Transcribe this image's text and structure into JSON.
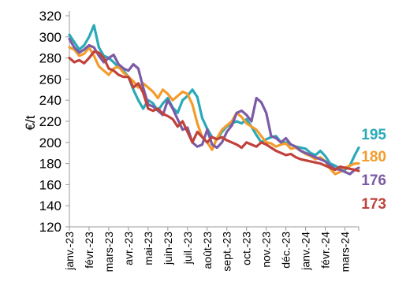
{
  "chart_data": {
    "type": "line",
    "title": "",
    "xlabel": "",
    "ylabel": "€/t",
    "ylim": [
      120,
      320
    ],
    "yticks": [
      120,
      140,
      160,
      180,
      200,
      220,
      240,
      260,
      280,
      300,
      320
    ],
    "grid": false,
    "legend": "none",
    "categories": [
      "janv.-23",
      "févr.-23",
      "mars-23",
      "avr.-23",
      "mai-23",
      "juin-23",
      "juil.-23",
      "août-23",
      "sept.-23",
      "oct.-23",
      "nov.-23",
      "déc.-23",
      "janv.-24",
      "févr.-24",
      "mars-24"
    ],
    "x_start_month": 0,
    "x_end_month": 14.7,
    "series": [
      {
        "name": "",
        "color": "#2AA9B8",
        "end_label": "195",
        "x": [
          0,
          0.25,
          0.5,
          0.75,
          1,
          1.25,
          1.5,
          1.75,
          2,
          2.25,
          2.5,
          2.75,
          3,
          3.25,
          3.5,
          3.75,
          4,
          4.25,
          4.5,
          4.75,
          5,
          5.25,
          5.5,
          5.75,
          6,
          6.25,
          6.5,
          6.75,
          7,
          7.25,
          7.5,
          7.75,
          8,
          8.25,
          8.5,
          8.75,
          9,
          9.25,
          9.5,
          9.75,
          10,
          10.25,
          10.5,
          10.75,
          11,
          11.25,
          11.5,
          11.75,
          12,
          12.25,
          12.5,
          12.75,
          13,
          13.25,
          13.5,
          13.75,
          14,
          14.25,
          14.5,
          14.7
        ],
        "values": [
          302,
          295,
          288,
          292,
          300,
          311,
          290,
          282,
          280,
          276,
          271,
          268,
          262,
          250,
          240,
          232,
          240,
          237,
          230,
          237,
          242,
          233,
          228,
          240,
          244,
          250,
          243,
          223,
          213,
          205,
          203,
          210,
          215,
          218,
          220,
          218,
          222,
          215,
          207,
          200,
          203,
          205,
          206,
          200,
          200,
          198,
          196,
          195,
          194,
          190,
          188,
          192,
          187,
          180,
          178,
          175,
          174,
          178,
          188,
          195
        ]
      },
      {
        "name": "",
        "color": "#F39C2C",
        "end_label": "180",
        "x": [
          0,
          0.25,
          0.5,
          0.75,
          1,
          1.25,
          1.5,
          1.75,
          2,
          2.25,
          2.5,
          2.75,
          3,
          3.25,
          3.5,
          3.75,
          4,
          4.25,
          4.5,
          4.75,
          5,
          5.25,
          5.5,
          5.75,
          6,
          6.25,
          6.5,
          6.75,
          7,
          7.25,
          7.5,
          7.75,
          8,
          8.25,
          8.5,
          8.75,
          9,
          9.25,
          9.5,
          9.75,
          10,
          10.25,
          10.5,
          10.75,
          11,
          11.25,
          11.5,
          11.75,
          12,
          12.25,
          12.5,
          12.75,
          13,
          13.25,
          13.5,
          13.75,
          14,
          14.25,
          14.5,
          14.7
        ],
        "values": [
          290,
          288,
          282,
          284,
          290,
          282,
          272,
          268,
          264,
          270,
          272,
          266,
          262,
          258,
          252,
          256,
          252,
          248,
          242,
          250,
          246,
          240,
          244,
          248,
          246,
          236,
          218,
          205,
          200,
          193,
          204,
          212,
          216,
          220,
          228,
          224,
          218,
          215,
          212,
          206,
          200,
          199,
          196,
          198,
          199,
          194,
          195,
          192,
          189,
          187,
          184,
          186,
          182,
          175,
          170,
          172,
          176,
          178,
          180,
          180
        ]
      },
      {
        "name": "",
        "color": "#7B5BA6",
        "end_label": "176",
        "x": [
          0,
          0.25,
          0.5,
          0.75,
          1,
          1.25,
          1.5,
          1.75,
          2,
          2.25,
          2.5,
          2.75,
          3,
          3.25,
          3.5,
          3.75,
          4,
          4.25,
          4.5,
          4.75,
          5,
          5.25,
          5.5,
          5.75,
          6,
          6.25,
          6.5,
          6.75,
          7,
          7.25,
          7.5,
          7.75,
          8,
          8.25,
          8.5,
          8.75,
          9,
          9.25,
          9.5,
          9.75,
          10,
          10.25,
          10.5,
          10.75,
          11,
          11.25,
          11.5,
          11.75,
          12,
          12.25,
          12.5,
          12.75,
          13,
          13.25,
          13.5,
          13.75,
          14,
          14.25,
          14.5,
          14.7
        ],
        "values": [
          298,
          290,
          285,
          288,
          292,
          290,
          282,
          276,
          280,
          283,
          274,
          270,
          268,
          274,
          270,
          252,
          236,
          234,
          230,
          226,
          240,
          232,
          222,
          212,
          214,
          200,
          196,
          198,
          212,
          198,
          195,
          200,
          210,
          216,
          228,
          230,
          226,
          220,
          242,
          238,
          228,
          206,
          204,
          200,
          204,
          198,
          196,
          192,
          190,
          188,
          186,
          184,
          182,
          178,
          175,
          174,
          172,
          170,
          174,
          176
        ]
      },
      {
        "name": "",
        "color": "#C0423B",
        "end_label": "173",
        "x": [
          0,
          0.25,
          0.5,
          0.75,
          1,
          1.25,
          1.5,
          1.75,
          2,
          2.25,
          2.5,
          2.75,
          3,
          3.25,
          3.5,
          3.75,
          4,
          4.25,
          4.5,
          4.75,
          5,
          5.25,
          5.5,
          5.75,
          6,
          6.25,
          6.5,
          6.75,
          7,
          7.25,
          7.5,
          7.75,
          8,
          8.25,
          8.5,
          8.75,
          9,
          9.25,
          9.5,
          9.75,
          10,
          10.25,
          10.5,
          10.75,
          11,
          11.25,
          11.5,
          11.75,
          12,
          12.25,
          12.5,
          12.75,
          13,
          13.25,
          13.5,
          13.75,
          14,
          14.25,
          14.5,
          14.7
        ],
        "values": [
          280,
          276,
          278,
          275,
          280,
          286,
          285,
          280,
          270,
          268,
          264,
          262,
          262,
          252,
          256,
          247,
          232,
          230,
          232,
          227,
          225,
          222,
          215,
          220,
          210,
          200,
          210,
          205,
          200,
          205,
          203,
          205,
          202,
          200,
          198,
          195,
          200,
          198,
          196,
          200,
          198,
          195,
          192,
          190,
          188,
          189,
          186,
          184,
          183,
          182,
          181,
          180,
          178,
          176,
          174,
          177,
          176,
          175,
          174,
          173
        ]
      }
    ]
  }
}
